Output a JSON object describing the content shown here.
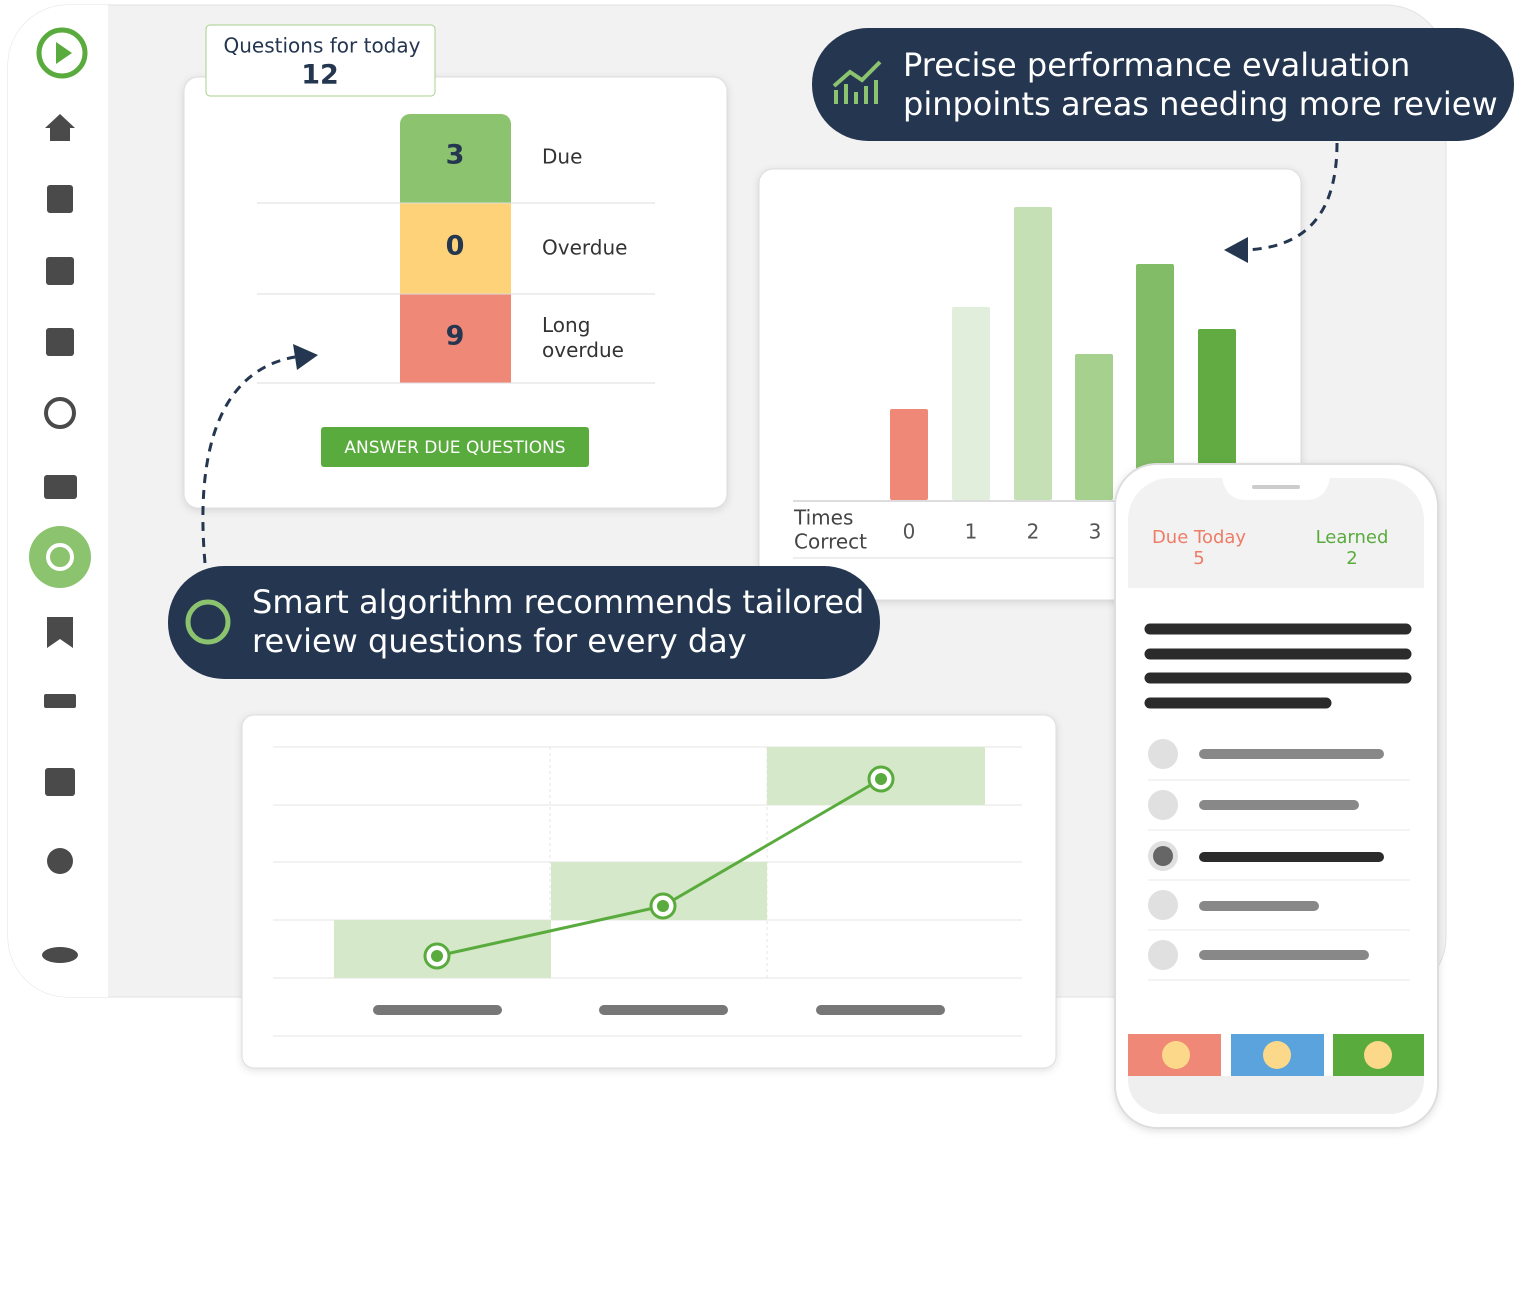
{
  "questions_today": {
    "label": "Questions for today",
    "count": "12"
  },
  "stack": [
    {
      "count": "3",
      "label": [
        "Due"
      ]
    },
    {
      "count": "0",
      "label": [
        "Overdue"
      ]
    },
    {
      "count": "9",
      "label": [
        "Long",
        "overdue"
      ]
    }
  ],
  "button": "ANSWER DUE QUESTIONS",
  "callout_performance": [
    "Precise performance evaluation",
    "pinpoints areas needing more review"
  ],
  "callout_algorithm": [
    "Smart algorithm recommends tailored",
    "review questions for every day"
  ],
  "times_correct": {
    "label": [
      "Times",
      "Correct"
    ],
    "categories": [
      "0",
      "1",
      "2",
      "3"
    ]
  },
  "phone": {
    "due_label": "Due Today",
    "due_count": "5",
    "learned_label": "Learned",
    "learned_count": "2"
  }
}
